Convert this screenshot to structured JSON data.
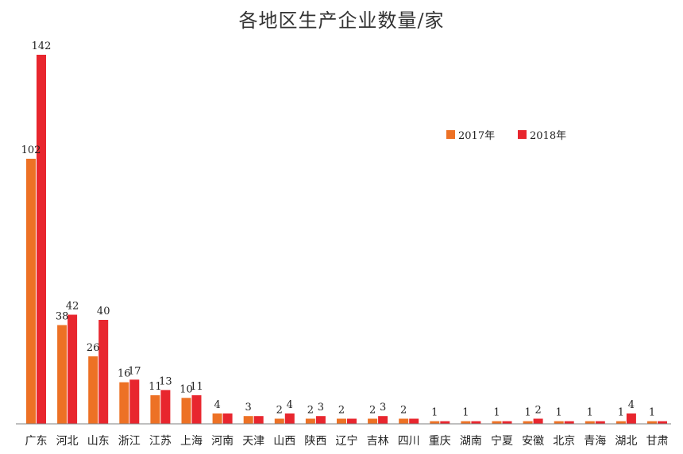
{
  "chart_data": {
    "type": "bar",
    "title": "各地区生产企业数量/家",
    "xlabel": "",
    "ylabel": "",
    "ylim": [
      0,
      145
    ],
    "grid": false,
    "legend_position": "top-right",
    "categories": [
      "广东",
      "河北",
      "山东",
      "浙江",
      "江苏",
      "上海",
      "河南",
      "天津",
      "山西",
      "陕西",
      "辽宁",
      "吉林",
      "四川",
      "重庆",
      "湖南",
      "宁夏",
      "安徽",
      "北京",
      "青海",
      "湖北",
      "甘肃"
    ],
    "series": [
      {
        "name": "2017年",
        "color": "#ED7125",
        "values": [
          102,
          38,
          26,
          16,
          11,
          10,
          4,
          3,
          2,
          2,
          2,
          2,
          2,
          1,
          1,
          1,
          1,
          1,
          1,
          1,
          1
        ],
        "labels": [
          "102",
          "38",
          "26",
          "16",
          "11",
          "10",
          "4",
          "3",
          "2",
          "2",
          "2",
          "2",
          "2",
          "1",
          "1",
          "1",
          "1",
          "1",
          "1",
          "1",
          "1"
        ]
      },
      {
        "name": "2018年",
        "color": "#E8262E",
        "values": [
          142,
          42,
          40,
          17,
          13,
          11,
          4,
          3,
          4,
          3,
          2,
          3,
          2,
          1,
          1,
          1,
          2,
          1,
          1,
          4,
          1
        ],
        "labels": [
          "142",
          "42",
          "40",
          "17",
          "13",
          "11",
          "",
          "",
          "4",
          "3",
          "",
          "3",
          "",
          "",
          "",
          "",
          "2",
          "",
          "",
          "4",
          ""
        ]
      }
    ]
  }
}
